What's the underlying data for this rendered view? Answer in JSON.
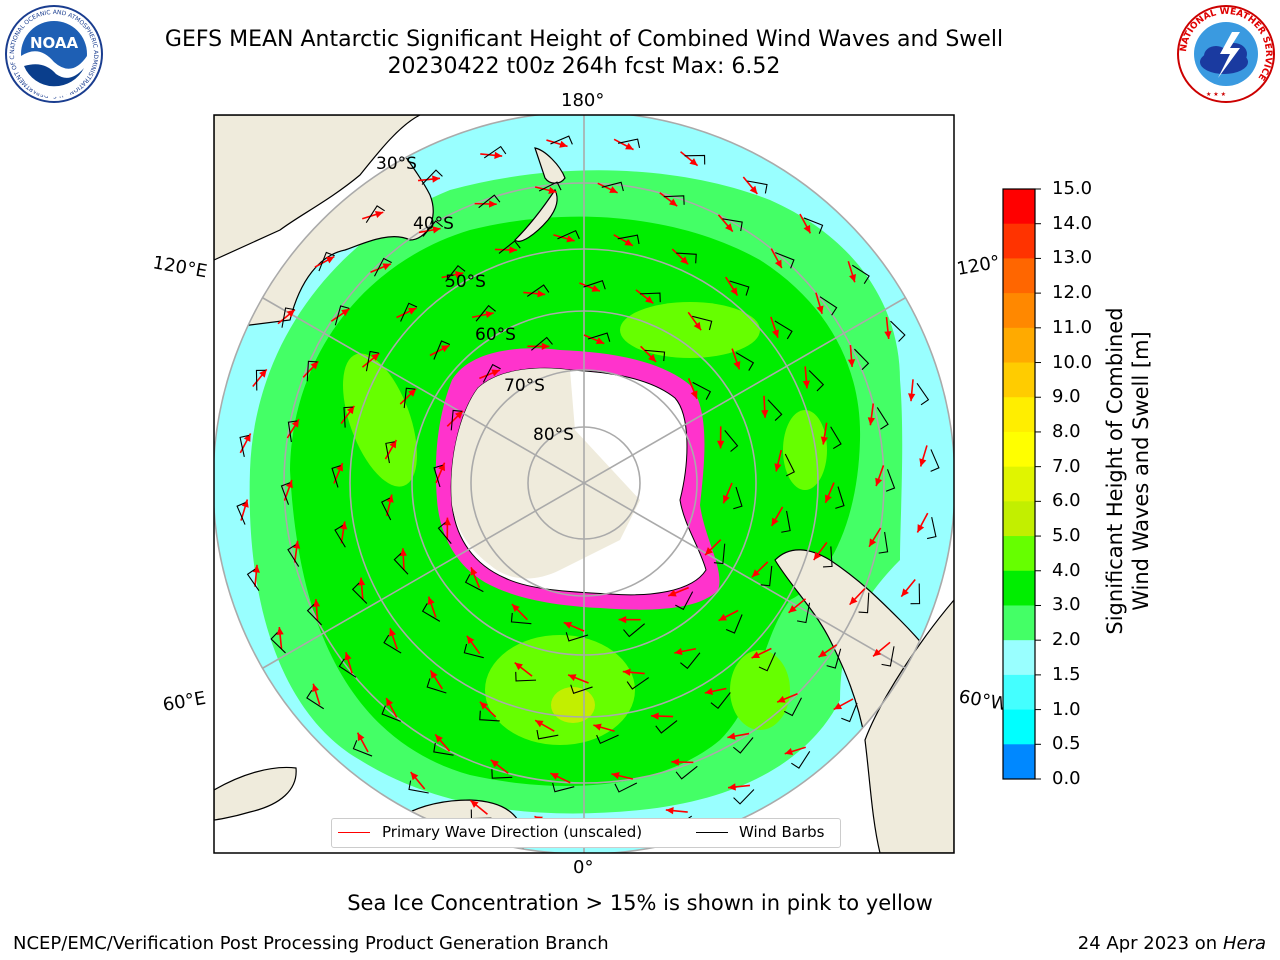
{
  "title": {
    "line1": "GEFS MEAN Antarctic Significant Height of Combined Wind Waves and Swell",
    "line2": "20230422 t00z 264h fcst   Max: 6.52"
  },
  "map": {
    "projection": "South Polar Stereographic",
    "longitude_labels": [
      "180°",
      "120°E",
      "120°",
      "60°E",
      "60°W",
      "0°"
    ],
    "latitude_labels": [
      "30°S",
      "40°S",
      "50°S",
      "60°S",
      "70°S",
      "80°S"
    ],
    "land_color": "#efebdc",
    "ice_color": "#ff33cc"
  },
  "colorbar": {
    "label_line1": "Significant Height of Combined",
    "label_line2": "Wind Waves and Swell [m]",
    "ticks": [
      "15.0",
      "14.0",
      "13.0",
      "12.0",
      "11.0",
      "10.0",
      "9.0",
      "8.0",
      "7.0",
      "6.0",
      "5.0",
      "4.0",
      "3.0",
      "2.0",
      "1.5",
      "1.0",
      "0.5",
      "0.0"
    ],
    "colors": [
      "#ff0000",
      "#ff3300",
      "#ff6600",
      "#ff8800",
      "#ffaa00",
      "#ffcc00",
      "#ffee00",
      "#ffff00",
      "#e0f500",
      "#c2ef00",
      "#66ff00",
      "#00ee00",
      "#44ff66",
      "#99ffff",
      "#44ffff",
      "#00ffff",
      "#0088ff",
      "#0000ff"
    ]
  },
  "legend": {
    "wave_label": "Primary Wave Direction (unscaled)",
    "wind_label": "Wind Barbs",
    "wave_color": "#ff0000",
    "wind_color": "#000000"
  },
  "footer": {
    "sea_ice_note": "Sea Ice Concentration > 15% is shown in pink to yellow",
    "credit": "NCEP/EMC/Verification Post Processing Product Generation Branch",
    "date_prefix": "24 Apr 2023 on ",
    "date_machine": "Hera"
  },
  "logos": {
    "noaa_text": "NOAA",
    "noaa_ring_text": "NATIONAL OCEANIC AND ATMOSPHERIC ADMINISTRATION · U.S. DEPARTMENT OF COMMERCE ·",
    "nws_ring_text": "NATIONAL WEATHER SERVICE"
  }
}
